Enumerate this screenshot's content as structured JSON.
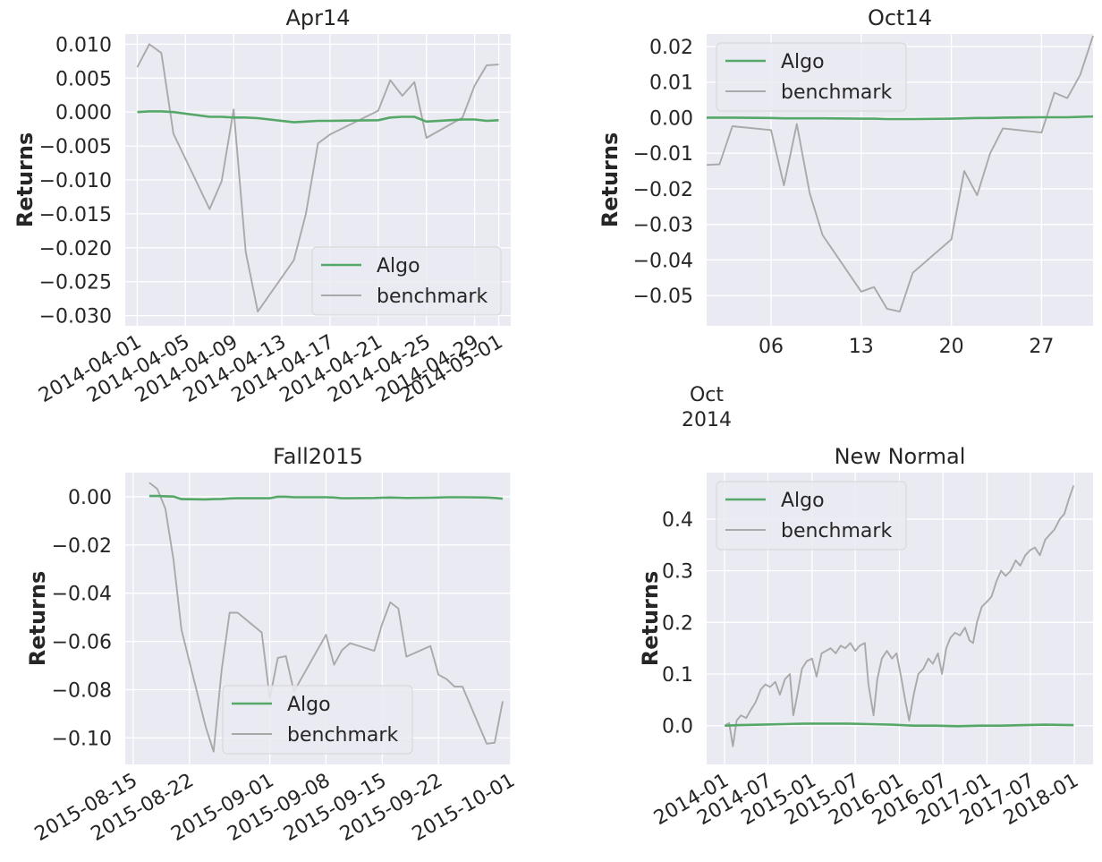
{
  "colors": {
    "algo": "#55a868",
    "benchmark": "#a9a9a9",
    "background": "#eaeaf2",
    "grid": "#ffffff"
  },
  "chart_data": [
    {
      "type": "line",
      "title": "Apr14",
      "ylabel": "Returns",
      "ylim": [
        -0.0315,
        0.0115
      ],
      "yticks": [
        0.01,
        0.005,
        0.0,
        -0.005,
        -0.01,
        -0.015,
        -0.02,
        -0.025,
        -0.03
      ],
      "ytick_labels": [
        "0.010",
        "0.005",
        "0.000",
        "−0.005",
        "−0.010",
        "−0.015",
        "−0.020",
        "−0.025",
        "−0.030"
      ],
      "x_axis": {
        "kind": "date",
        "range": [
          "2014-03-31",
          "2014-05-02"
        ]
      },
      "xticks": [
        "2014-04-01",
        "2014-04-05",
        "2014-04-09",
        "2014-04-13",
        "2014-04-17",
        "2014-04-21",
        "2014-04-25",
        "2014-04-29",
        "2014-05-01"
      ],
      "xtick_labels": [
        "2014-04-01",
        "2014-04-05",
        "2014-04-09",
        "2014-04-13",
        "2014-04-17",
        "2014-04-21",
        "2014-04-25",
        "2014-04-29",
        "2014-05-01"
      ],
      "legend": {
        "placement": "lower-right",
        "entries": [
          "Algo",
          "benchmark"
        ]
      },
      "series": [
        {
          "name": "Algo",
          "color": "#55a868",
          "x": [
            "2014-04-01",
            "2014-04-02",
            "2014-04-03",
            "2014-04-04",
            "2014-04-07",
            "2014-04-08",
            "2014-04-09",
            "2014-04-10",
            "2014-04-11",
            "2014-04-14",
            "2014-04-15",
            "2014-04-16",
            "2014-04-17",
            "2014-04-21",
            "2014-04-22",
            "2014-04-23",
            "2014-04-24",
            "2014-04-25",
            "2014-04-28",
            "2014-04-29",
            "2014-04-30",
            "2014-05-01"
          ],
          "y": [
            0.0,
            0.0001,
            0.0001,
            0.0,
            -0.0007,
            -0.0007,
            -0.0008,
            -0.0008,
            -0.0009,
            -0.0015,
            -0.0014,
            -0.0013,
            -0.0013,
            -0.0012,
            -0.0008,
            -0.0007,
            -0.0007,
            -0.0014,
            -0.0011,
            -0.0011,
            -0.0013,
            -0.0012
          ]
        },
        {
          "name": "benchmark",
          "color": "#a9a9a9",
          "x": [
            "2014-04-01",
            "2014-04-02",
            "2014-04-03",
            "2014-04-04",
            "2014-04-07",
            "2014-04-08",
            "2014-04-09",
            "2014-04-10",
            "2014-04-11",
            "2014-04-14",
            "2014-04-15",
            "2014-04-16",
            "2014-04-17",
            "2014-04-21",
            "2014-04-22",
            "2014-04-23",
            "2014-04-24",
            "2014-04-25",
            "2014-04-28",
            "2014-04-29",
            "2014-04-30",
            "2014-05-01"
          ],
          "y": [
            0.0066,
            0.01,
            0.0087,
            -0.0032,
            -0.0143,
            -0.0102,
            0.0004,
            -0.0206,
            -0.0294,
            -0.0218,
            -0.015,
            -0.0046,
            -0.0033,
            0.0002,
            0.0047,
            0.0024,
            0.0044,
            -0.0038,
            -0.0008,
            0.0039,
            0.0069,
            0.007
          ]
        }
      ]
    },
    {
      "type": "line",
      "title": "Oct14",
      "ylabel": "Returns",
      "ylim": [
        -0.0585,
        0.0235
      ],
      "yticks": [
        0.02,
        0.01,
        0.0,
        -0.01,
        -0.02,
        -0.03,
        -0.04,
        -0.05
      ],
      "ytick_labels": [
        "0.02",
        "0.01",
        "0.00",
        "−0.01",
        "−0.02",
        "−0.03",
        "−0.04",
        "−0.05"
      ],
      "x_axis": {
        "kind": "date",
        "range": [
          "2014-10-01",
          "2014-10-31"
        ]
      },
      "xticks": [
        "2014-10-06",
        "2014-10-13",
        "2014-10-20",
        "2014-10-27"
      ],
      "xtick_labels": [
        "06",
        "13",
        "20",
        "27"
      ],
      "xaxis_offset_label": [
        "Oct",
        "2014"
      ],
      "legend": {
        "placement": "upper-left",
        "entries": [
          "Algo",
          "benchmark"
        ]
      },
      "series": [
        {
          "name": "Algo",
          "color": "#55a868",
          "x": [
            "2014-10-01",
            "2014-10-02",
            "2014-10-03",
            "2014-10-06",
            "2014-10-07",
            "2014-10-08",
            "2014-10-09",
            "2014-10-10",
            "2014-10-13",
            "2014-10-14",
            "2014-10-15",
            "2014-10-16",
            "2014-10-17",
            "2014-10-20",
            "2014-10-21",
            "2014-10-22",
            "2014-10-23",
            "2014-10-24",
            "2014-10-27",
            "2014-10-28",
            "2014-10-29",
            "2014-10-30",
            "2014-10-31"
          ],
          "y": [
            0.0,
            0.0,
            0.0,
            -0.0001,
            -0.0002,
            -0.0002,
            -0.0002,
            -0.0002,
            -0.0003,
            -0.0003,
            -0.0004,
            -0.0004,
            -0.0004,
            -0.0003,
            -0.0002,
            -0.0001,
            -0.0001,
            0.0,
            0.0001,
            0.0001,
            0.0001,
            0.0002,
            0.0003
          ]
        },
        {
          "name": "benchmark",
          "color": "#a9a9a9",
          "x": [
            "2014-10-01",
            "2014-10-02",
            "2014-10-03",
            "2014-10-06",
            "2014-10-07",
            "2014-10-08",
            "2014-10-09",
            "2014-10-10",
            "2014-10-13",
            "2014-10-14",
            "2014-10-15",
            "2014-10-16",
            "2014-10-17",
            "2014-10-20",
            "2014-10-21",
            "2014-10-22",
            "2014-10-23",
            "2014-10-24",
            "2014-10-27",
            "2014-10-28",
            "2014-10-29",
            "2014-10-30",
            "2014-10-31"
          ],
          "y": [
            -0.0133,
            -0.0131,
            -0.0024,
            -0.0035,
            -0.019,
            -0.0018,
            -0.0212,
            -0.033,
            -0.0489,
            -0.0476,
            -0.0537,
            -0.0545,
            -0.0436,
            -0.0342,
            -0.015,
            -0.0218,
            -0.0101,
            -0.003,
            -0.0042,
            0.007,
            0.0055,
            0.012,
            0.023
          ]
        }
      ]
    },
    {
      "type": "line",
      "title": "Fall2015",
      "ylabel": "Returns",
      "ylim": [
        -0.111,
        0.01
      ],
      "yticks": [
        0.0,
        -0.02,
        -0.04,
        -0.06,
        -0.08,
        -0.1
      ],
      "ytick_labels": [
        "0.00",
        "−0.02",
        "−0.04",
        "−0.06",
        "−0.08",
        "−0.10"
      ],
      "x_axis": {
        "kind": "date",
        "range": [
          "2015-08-14",
          "2015-10-01"
        ]
      },
      "xticks": [
        "2015-08-15",
        "2015-08-22",
        "2015-09-01",
        "2015-09-08",
        "2015-09-15",
        "2015-09-22",
        "2015-10-01"
      ],
      "xtick_labels": [
        "2015-08-15",
        "2015-08-22",
        "2015-09-01",
        "2015-09-08",
        "2015-09-15",
        "2015-09-22",
        "2015-10-01"
      ],
      "legend": {
        "placement": "lower-center",
        "entries": [
          "Algo",
          "benchmark"
        ]
      },
      "series": [
        {
          "name": "Algo",
          "color": "#55a868",
          "x": [
            "2015-08-17",
            "2015-08-18",
            "2015-08-19",
            "2015-08-20",
            "2015-08-21",
            "2015-08-24",
            "2015-08-25",
            "2015-08-26",
            "2015-08-27",
            "2015-08-28",
            "2015-08-31",
            "2015-09-01",
            "2015-09-02",
            "2015-09-03",
            "2015-09-04",
            "2015-09-08",
            "2015-09-09",
            "2015-09-10",
            "2015-09-11",
            "2015-09-14",
            "2015-09-15",
            "2015-09-16",
            "2015-09-17",
            "2015-09-18",
            "2015-09-21",
            "2015-09-22",
            "2015-09-23",
            "2015-09-24",
            "2015-09-25",
            "2015-09-28",
            "2015-09-29",
            "2015-09-30"
          ],
          "y": [
            0.0003,
            0.0003,
            0.0002,
            0.0001,
            -0.001,
            -0.0011,
            -0.001,
            -0.0009,
            -0.0007,
            -0.0006,
            -0.0006,
            -0.0006,
            0.0,
            0.0,
            -0.0002,
            -0.0002,
            -0.0003,
            -0.0006,
            -0.0006,
            -0.0005,
            -0.0004,
            -0.0003,
            -0.0004,
            -0.0005,
            -0.0004,
            -0.0003,
            -0.0002,
            -0.0002,
            -0.0002,
            -0.0003,
            -0.0005,
            -0.0008
          ]
        },
        {
          "name": "benchmark",
          "color": "#a9a9a9",
          "x": [
            "2015-08-17",
            "2015-08-18",
            "2015-08-19",
            "2015-08-20",
            "2015-08-21",
            "2015-08-24",
            "2015-08-25",
            "2015-08-26",
            "2015-08-27",
            "2015-08-28",
            "2015-08-31",
            "2015-09-01",
            "2015-09-02",
            "2015-09-03",
            "2015-09-04",
            "2015-09-08",
            "2015-09-09",
            "2015-09-10",
            "2015-09-11",
            "2015-09-14",
            "2015-09-15",
            "2015-09-16",
            "2015-09-17",
            "2015-09-18",
            "2015-09-21",
            "2015-09-22",
            "2015-09-23",
            "2015-09-24",
            "2015-09-25",
            "2015-09-28",
            "2015-09-29",
            "2015-09-30"
          ],
          "y": [
            0.0058,
            0.0032,
            -0.005,
            -0.026,
            -0.0552,
            -0.0952,
            -0.1057,
            -0.0718,
            -0.0481,
            -0.0481,
            -0.0563,
            -0.0836,
            -0.0668,
            -0.0661,
            -0.0808,
            -0.0572,
            -0.0697,
            -0.0636,
            -0.0607,
            -0.0639,
            -0.0527,
            -0.0438,
            -0.0463,
            -0.0663,
            -0.0619,
            -0.0738,
            -0.0756,
            -0.0787,
            -0.0788,
            -0.1024,
            -0.102,
            -0.0848
          ]
        }
      ]
    },
    {
      "type": "line",
      "title": "New Normal",
      "ylabel": "Returns",
      "ylim": [
        -0.075,
        0.49
      ],
      "yticks": [
        0.4,
        0.3,
        0.2,
        0.1,
        0.0
      ],
      "ytick_labels": [
        "0.4",
        "0.3",
        "0.2",
        "0.1",
        "0.0"
      ],
      "x_axis": {
        "kind": "date",
        "range": [
          "2013-10-18",
          "2018-03-20"
        ]
      },
      "xticks": [
        "2014-01-01",
        "2014-07-01",
        "2015-01-01",
        "2015-07-01",
        "2016-01-01",
        "2016-07-01",
        "2017-01-01",
        "2017-07-01",
        "2018-01-01"
      ],
      "xtick_labels": [
        "2014-01",
        "2014-07",
        "2015-01",
        "2015-07",
        "2016-01",
        "2016-07",
        "2017-01",
        "2017-07",
        "2018-01"
      ],
      "legend": {
        "placement": "upper-left",
        "entries": [
          "Algo",
          "benchmark"
        ]
      },
      "series": [
        {
          "name": "Algo",
          "color": "#55a868",
          "x": [
            "2014-01-02",
            "2014-03-01",
            "2014-06-01",
            "2014-09-01",
            "2014-12-01",
            "2015-03-01",
            "2015-06-01",
            "2015-09-01",
            "2015-12-01",
            "2016-03-01",
            "2016-06-01",
            "2016-09-01",
            "2016-12-01",
            "2017-03-01",
            "2017-06-01",
            "2017-09-01",
            "2017-12-29"
          ],
          "y": [
            0.0,
            0.001,
            0.002,
            0.003,
            0.004,
            0.004,
            0.004,
            0.003,
            0.002,
            0.0,
            0.0,
            -0.001,
            0.0,
            0.0,
            0.001,
            0.002,
            0.001
          ]
        },
        {
          "name": "benchmark",
          "color": "#a9a9a9",
          "x": [
            "2014-01-02",
            "2014-01-20",
            "2014-02-05",
            "2014-02-20",
            "2014-03-10",
            "2014-04-01",
            "2014-04-20",
            "2014-05-10",
            "2014-06-01",
            "2014-06-20",
            "2014-07-10",
            "2014-08-01",
            "2014-08-20",
            "2014-09-10",
            "2014-10-01",
            "2014-10-15",
            "2014-11-01",
            "2014-11-20",
            "2014-12-10",
            "2015-01-01",
            "2015-01-20",
            "2015-02-10",
            "2015-03-01",
            "2015-03-20",
            "2015-04-10",
            "2015-05-01",
            "2015-05-20",
            "2015-06-10",
            "2015-07-01",
            "2015-07-20",
            "2015-08-10",
            "2015-08-25",
            "2015-09-15",
            "2015-10-01",
            "2015-10-20",
            "2015-11-10",
            "2015-12-01",
            "2015-12-20",
            "2016-01-10",
            "2016-01-25",
            "2016-02-11",
            "2016-03-01",
            "2016-03-20",
            "2016-04-10",
            "2016-05-01",
            "2016-05-20",
            "2016-06-10",
            "2016-06-27",
            "2016-07-15",
            "2016-08-01",
            "2016-08-20",
            "2016-09-10",
            "2016-10-01",
            "2016-10-20",
            "2016-11-04",
            "2016-11-20",
            "2016-12-10",
            "2017-01-01",
            "2017-01-20",
            "2017-02-10",
            "2017-03-01",
            "2017-03-20",
            "2017-04-10",
            "2017-05-01",
            "2017-05-20",
            "2017-06-10",
            "2017-07-01",
            "2017-07-20",
            "2017-08-10",
            "2017-09-01",
            "2017-09-20",
            "2017-10-10",
            "2017-11-01",
            "2017-11-20",
            "2017-12-10",
            "2017-12-29"
          ],
          "y": [
            0.0,
            0.005,
            -0.04,
            0.01,
            0.02,
            0.015,
            0.03,
            0.045,
            0.07,
            0.08,
            0.075,
            0.085,
            0.06,
            0.09,
            0.1,
            0.02,
            0.06,
            0.11,
            0.125,
            0.13,
            0.095,
            0.14,
            0.145,
            0.15,
            0.14,
            0.155,
            0.15,
            0.16,
            0.145,
            0.155,
            0.16,
            0.08,
            0.02,
            0.09,
            0.13,
            0.145,
            0.13,
            0.14,
            0.09,
            0.05,
            0.01,
            0.06,
            0.1,
            0.11,
            0.13,
            0.12,
            0.14,
            0.1,
            0.15,
            0.17,
            0.18,
            0.175,
            0.19,
            0.165,
            0.16,
            0.2,
            0.23,
            0.24,
            0.25,
            0.28,
            0.3,
            0.29,
            0.3,
            0.32,
            0.31,
            0.33,
            0.34,
            0.345,
            0.33,
            0.36,
            0.37,
            0.38,
            0.4,
            0.41,
            0.44,
            0.465
          ]
        }
      ]
    }
  ]
}
